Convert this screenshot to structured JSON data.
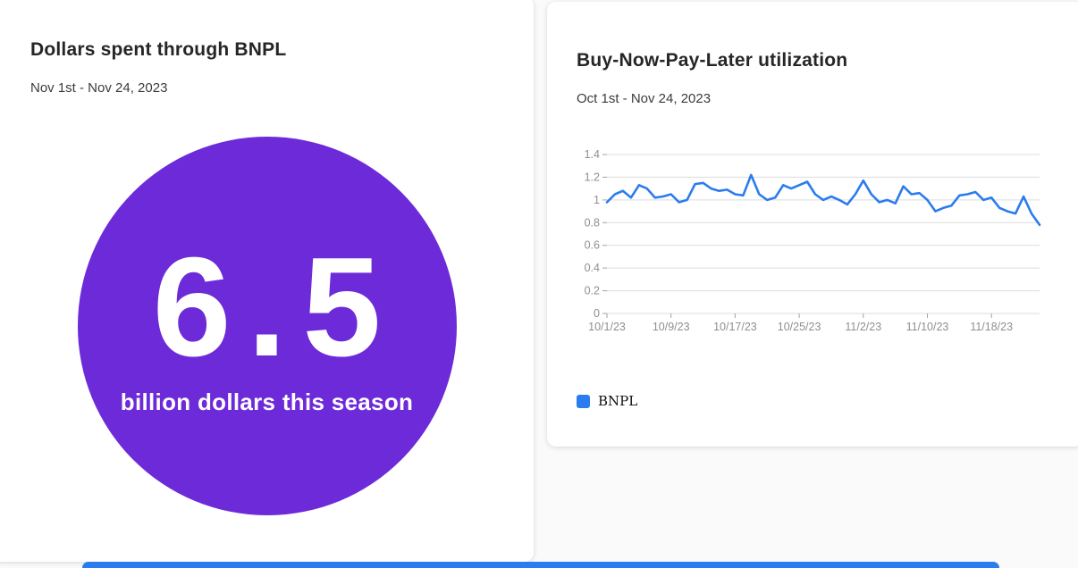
{
  "theme": {
    "purple": "#6d2ad9",
    "blue": "#2b7cee",
    "card_bg": "#ffffff",
    "page_bg": "#fafafa",
    "grid_color": "#dcdcdc",
    "tick_text_color": "#8f8f8f"
  },
  "left_card": {
    "title": "Dollars spent through BNPL",
    "date_range": "Nov 1st - Nov 24, 2023",
    "value": "6.5",
    "caption": "billion dollars this season"
  },
  "right_card": {
    "title": "Buy-Now-Pay-Later utilization",
    "date_range": "Oct 1st - Nov 24, 2023",
    "legend_label": "BNPL"
  },
  "chart_data": {
    "type": "line",
    "title": "Buy-Now-Pay-Later utilization",
    "xlabel": "",
    "ylabel": "",
    "grid": "horizontal",
    "legend_position": "bottom-left",
    "ylim": [
      0,
      1.4
    ],
    "yticks": [
      0,
      0.2,
      0.4,
      0.6,
      0.8,
      1,
      1.2,
      1.4
    ],
    "xticks": [
      "10/1/23",
      "10/9/23",
      "10/17/23",
      "10/25/23",
      "11/2/23",
      "11/10/23",
      "11/18/23"
    ],
    "xtick_step": 8,
    "series": [
      {
        "name": "BNPL",
        "values": [
          0.98,
          1.05,
          1.08,
          1.02,
          1.13,
          1.1,
          1.02,
          1.03,
          1.05,
          0.98,
          1.0,
          1.14,
          1.15,
          1.1,
          1.08,
          1.09,
          1.05,
          1.04,
          1.22,
          1.05,
          1.0,
          1.02,
          1.13,
          1.1,
          1.13,
          1.16,
          1.05,
          1.0,
          1.03,
          1.0,
          0.96,
          1.05,
          1.17,
          1.05,
          0.98,
          1.0,
          0.97,
          1.12,
          1.05,
          1.06,
          1.0,
          0.9,
          0.93,
          0.95,
          1.04,
          1.05,
          1.07,
          1.0,
          1.02,
          0.93,
          0.9,
          0.88,
          1.03,
          0.88,
          0.78
        ]
      }
    ]
  }
}
